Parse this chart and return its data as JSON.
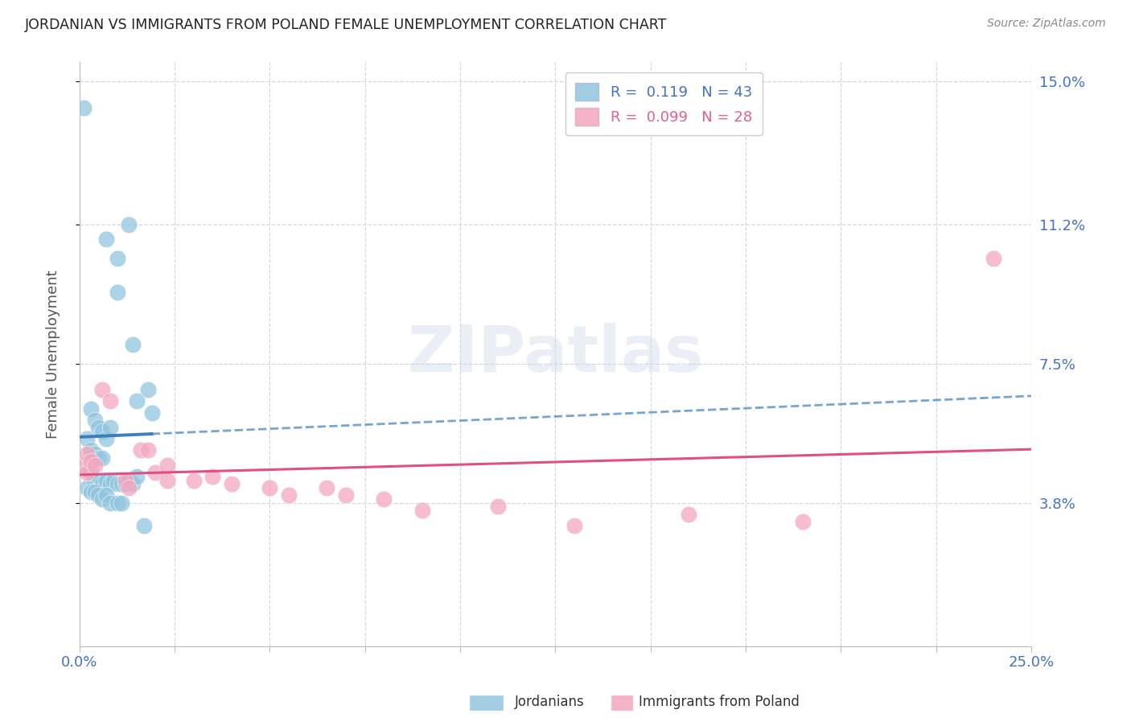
{
  "title": "JORDANIAN VS IMMIGRANTS FROM POLAND FEMALE UNEMPLOYMENT CORRELATION CHART",
  "source": "Source: ZipAtlas.com",
  "ylabel": "Female Unemployment",
  "xlim": [
    0.0,
    0.25
  ],
  "ylim": [
    0.0,
    0.155
  ],
  "xtick_vals": [
    0.0,
    0.025,
    0.05,
    0.075,
    0.1,
    0.125,
    0.15,
    0.175,
    0.2,
    0.225,
    0.25
  ],
  "xtick_labels": [
    "0.0%",
    "",
    "",
    "",
    "",
    "",
    "",
    "",
    "",
    "",
    "25.0%"
  ],
  "ytick_labels": [
    "3.8%",
    "7.5%",
    "11.2%",
    "15.0%"
  ],
  "ytick_values": [
    0.038,
    0.075,
    0.112,
    0.15
  ],
  "watermark": "ZIPatlas",
  "blue_color": "#92c5de",
  "pink_color": "#f4a6bf",
  "blue_line_color": "#3a7fc1",
  "pink_line_color": "#e05080",
  "legend_label_1": "R =  0.119   N = 43",
  "legend_label_2": "R =  0.099   N = 28",
  "legend_text_color_1": "#4472c4",
  "legend_text_color_2": "#e06090",
  "blue_pts": [
    [
      0.001,
      0.143
    ],
    [
      0.007,
      0.108
    ],
    [
      0.01,
      0.103
    ],
    [
      0.01,
      0.094
    ],
    [
      0.013,
      0.112
    ],
    [
      0.014,
      0.08
    ],
    [
      0.015,
      0.065
    ],
    [
      0.018,
      0.068
    ],
    [
      0.019,
      0.062
    ],
    [
      0.003,
      0.063
    ],
    [
      0.004,
      0.06
    ],
    [
      0.005,
      0.058
    ],
    [
      0.006,
      0.057
    ],
    [
      0.007,
      0.055
    ],
    [
      0.008,
      0.058
    ],
    [
      0.002,
      0.055
    ],
    [
      0.003,
      0.052
    ],
    [
      0.004,
      0.051
    ],
    [
      0.005,
      0.05
    ],
    [
      0.006,
      0.05
    ],
    [
      0.003,
      0.046
    ],
    [
      0.004,
      0.044
    ],
    [
      0.005,
      0.044
    ],
    [
      0.006,
      0.043
    ],
    [
      0.007,
      0.044
    ],
    [
      0.008,
      0.043
    ],
    [
      0.009,
      0.044
    ],
    [
      0.01,
      0.043
    ],
    [
      0.011,
      0.043
    ],
    [
      0.012,
      0.043
    ],
    [
      0.013,
      0.044
    ],
    [
      0.014,
      0.043
    ],
    [
      0.015,
      0.045
    ],
    [
      0.002,
      0.042
    ],
    [
      0.003,
      0.041
    ],
    [
      0.004,
      0.041
    ],
    [
      0.005,
      0.04
    ],
    [
      0.006,
      0.039
    ],
    [
      0.007,
      0.04
    ],
    [
      0.008,
      0.038
    ],
    [
      0.01,
      0.038
    ],
    [
      0.011,
      0.038
    ],
    [
      0.017,
      0.032
    ]
  ],
  "pink_pts": [
    [
      0.001,
      0.048
    ],
    [
      0.002,
      0.051
    ],
    [
      0.002,
      0.046
    ],
    [
      0.003,
      0.049
    ],
    [
      0.004,
      0.048
    ],
    [
      0.006,
      0.068
    ],
    [
      0.008,
      0.065
    ],
    [
      0.012,
      0.044
    ],
    [
      0.013,
      0.042
    ],
    [
      0.016,
      0.052
    ],
    [
      0.018,
      0.052
    ],
    [
      0.02,
      0.046
    ],
    [
      0.023,
      0.048
    ],
    [
      0.023,
      0.044
    ],
    [
      0.03,
      0.044
    ],
    [
      0.035,
      0.045
    ],
    [
      0.04,
      0.043
    ],
    [
      0.05,
      0.042
    ],
    [
      0.055,
      0.04
    ],
    [
      0.065,
      0.042
    ],
    [
      0.07,
      0.04
    ],
    [
      0.08,
      0.039
    ],
    [
      0.09,
      0.036
    ],
    [
      0.11,
      0.037
    ],
    [
      0.13,
      0.032
    ],
    [
      0.16,
      0.035
    ],
    [
      0.19,
      0.033
    ],
    [
      0.24,
      0.103
    ]
  ]
}
